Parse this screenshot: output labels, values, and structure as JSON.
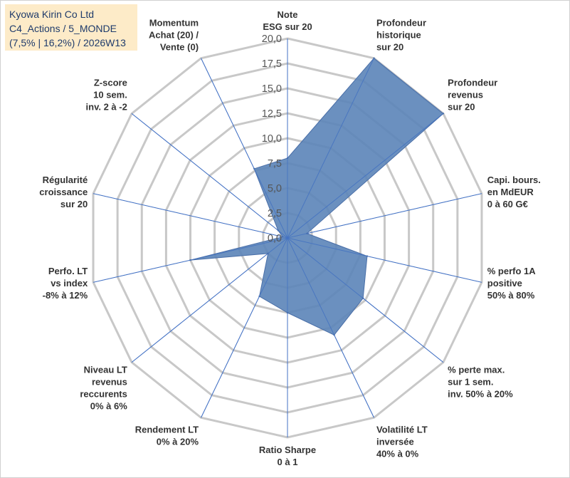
{
  "title_box": {
    "line1": "Kyowa Kirin Co Ltd",
    "line2": "C4_Actions / 5_MONDE",
    "line3": "(7,5% | 16,2%) / 2026W13"
  },
  "colors": {
    "fill": "#5b84b8",
    "stroke": "#4a6fa8",
    "grid": "#c8c8c8",
    "spoke": "#4472c4",
    "title_bg": "#fdebc8"
  },
  "chart_data": {
    "type": "radar",
    "title": "Kyowa Kirin Co Ltd",
    "rlim": [
      0,
      20
    ],
    "grid": true,
    "ticks": [
      "0,0",
      "2,5",
      "5,0",
      "7,5",
      "10,0",
      "12,5",
      "15,0",
      "17,5",
      "20,0"
    ],
    "tick_values": [
      0,
      2.5,
      5,
      7.5,
      10,
      12.5,
      15,
      17.5,
      20
    ],
    "axes": [
      [
        "Note",
        "ESG sur 20"
      ],
      [
        "Profondeur",
        "historique",
        "sur 20"
      ],
      [
        "Profondeur",
        "revenus",
        "sur 20"
      ],
      [
        "Capi. bours.",
        "en MdEUR",
        "0 à 60 G€"
      ],
      [
        "% perfo 1A",
        "positive",
        "50% à 80%"
      ],
      [
        "% perte max.",
        "sur 1 sem.",
        "inv. 50% à 20%"
      ],
      [
        "Volatilité LT",
        "inversée",
        "40% à 0%"
      ],
      [
        "Ratio Sharpe",
        "0 à 1"
      ],
      [
        "Rendement LT",
        "0% à 20%"
      ],
      [
        "Niveau LT",
        "revenus",
        "reccurents",
        "0% à 6%"
      ],
      [
        "Perfo. LT",
        "vs index",
        "-8% à 12%"
      ],
      [
        "Régularité",
        "croissance",
        "sur 20"
      ],
      [
        "Z-score",
        "10 sem.",
        "inv. 2 à -2"
      ],
      [
        "Momentum",
        "Achat (20) /",
        "Vente (0)"
      ]
    ],
    "series": [
      {
        "name": "Kyowa Kirin Co Ltd",
        "values": [
          8,
          20,
          20,
          2,
          8.2,
          9.7,
          10.8,
          7.5,
          6.5,
          2.5,
          10,
          0.5,
          1.2,
          7.7
        ]
      }
    ]
  }
}
